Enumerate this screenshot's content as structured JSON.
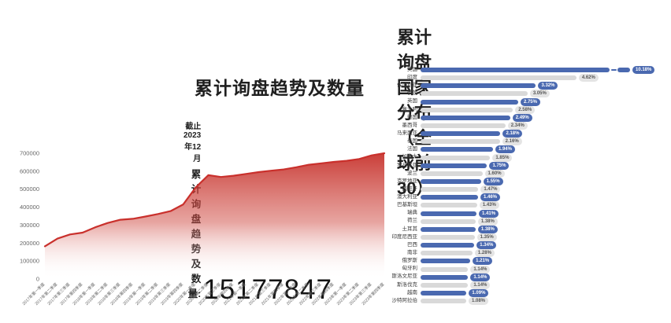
{
  "page": {
    "background": "#ffffff"
  },
  "left_panel": {
    "title": "累计询盘趋势及数量",
    "as_of": "截止2023年12月",
    "total_label": "累计询盘趋势及数量:",
    "total_value": "15177847"
  },
  "right_panel": {
    "title": "累计询盘国家分布（全球前30）"
  },
  "colors": {
    "bar_blue": "#4a69b0",
    "bar_gray": "#d9d9d9",
    "pill_blue_bg": "#4a69b0",
    "pill_blue_text": "#ffffff",
    "pill_gray_bg": "#e4e4e4",
    "pill_gray_text": "#555555",
    "trend_line": "#c9302c",
    "trend_fill_top": "#c7342e",
    "axis_text": "#666666"
  },
  "chart_data": [
    {
      "type": "area",
      "title": "累计询盘趋势及数量",
      "xlabel": "",
      "ylabel": "",
      "ylim": [
        0,
        700000
      ],
      "yticks": [
        0,
        100000,
        200000,
        300000,
        400000,
        500000,
        600000,
        700000
      ],
      "grid": false,
      "legend": false,
      "line_color": "#c9302c",
      "annotation": {
        "as_of": "截止2023年12月",
        "label": "累计询盘趋势及数量:",
        "total": 15177847
      },
      "x": [
        "2017年第一季度",
        "2017年第二季度",
        "2017年第三季度",
        "2017年第四季度",
        "2018年第一季度",
        "2018年第二季度",
        "2018年第三季度",
        "2018年第四季度",
        "2019年第一季度",
        "2019年第二季度",
        "2019年第三季度",
        "2019年第四季度",
        "2020年第一季度",
        "2020年第二季度",
        "2020年第三季度",
        "2020年第四季度",
        "2021年第一季度",
        "2021年第二季度",
        "2021年第三季度",
        "2021年第四季度",
        "2022年第一季度",
        "2022年第二季度",
        "2022年第三季度",
        "2022年第四季度",
        "2023年第一季度",
        "2023年第二季度",
        "2023年第三季度",
        "2023年第四季度"
      ],
      "values": [
        182000,
        225000,
        248000,
        258000,
        288000,
        312000,
        330000,
        335000,
        348000,
        362000,
        378000,
        415000,
        510000,
        578000,
        568000,
        575000,
        585000,
        595000,
        603000,
        610000,
        622000,
        636000,
        644000,
        652000,
        658000,
        668000,
        688000,
        700000
      ]
    },
    {
      "type": "bar",
      "orientation": "horizontal",
      "title": "累计询盘国家分布（全球前30）",
      "unit": "%",
      "sorted": "descending",
      "axis_break_first_bar": true,
      "legend": false,
      "rows": [
        {
          "label": "美国",
          "value": 10.18,
          "display": "10.18%"
        },
        {
          "label": "印度",
          "value": 4.62,
          "display": "4.62%"
        },
        {
          "label": "保加利亚",
          "value": 3.32,
          "display": "3.32%"
        },
        {
          "label": "伊朗",
          "value": 3.05,
          "display": "3.05%"
        },
        {
          "label": "英国",
          "value": 2.75,
          "display": "2.75%"
        },
        {
          "label": "意大利",
          "value": 2.58,
          "display": "2.58%"
        },
        {
          "label": "德国",
          "value": 2.49,
          "display": "2.49%"
        },
        {
          "label": "墨西哥",
          "value": 2.34,
          "display": "2.34%"
        },
        {
          "label": "马来西亚",
          "value": 2.18,
          "display": "2.18%"
        },
        {
          "label": "泰国",
          "value": 2.16,
          "display": "2.16%"
        },
        {
          "label": "法国",
          "value": 1.94,
          "display": "1.94%"
        },
        {
          "label": "加拿大",
          "value": 1.85,
          "display": "1.85%"
        },
        {
          "label": "罗马尼亚",
          "value": 1.75,
          "display": "1.75%"
        },
        {
          "label": "波兰",
          "value": 1.6,
          "display": "1.60%"
        },
        {
          "label": "克罗地亚",
          "value": 1.55,
          "display": "1.55%"
        },
        {
          "label": "西班牙",
          "value": 1.47,
          "display": "1.47%"
        },
        {
          "label": "澳大利亚",
          "value": 1.46,
          "display": "1.46%"
        },
        {
          "label": "巴基斯坦",
          "value": 1.43,
          "display": "1.43%"
        },
        {
          "label": "瑞典",
          "value": 1.41,
          "display": "1.41%"
        },
        {
          "label": "荷兰",
          "value": 1.38,
          "display": "1.38%"
        },
        {
          "label": "土耳其",
          "value": 1.38,
          "display": "1.38%"
        },
        {
          "label": "印度尼西亚",
          "value": 1.35,
          "display": "1.35%"
        },
        {
          "label": "巴西",
          "value": 1.34,
          "display": "1.34%"
        },
        {
          "label": "南非",
          "value": 1.28,
          "display": "1.28%"
        },
        {
          "label": "俄罗斯",
          "value": 1.21,
          "display": "1.21%"
        },
        {
          "label": "匈牙利",
          "value": 1.14,
          "display": "1.14%"
        },
        {
          "label": "斯洛文尼亚",
          "value": 1.14,
          "display": "1.14%"
        },
        {
          "label": "斯洛伐克",
          "value": 1.14,
          "display": "1.14%"
        },
        {
          "label": "越南",
          "value": 1.09,
          "display": "1.09%"
        },
        {
          "label": "沙特阿拉伯",
          "value": 1.08,
          "display": "1.08%"
        }
      ]
    }
  ]
}
